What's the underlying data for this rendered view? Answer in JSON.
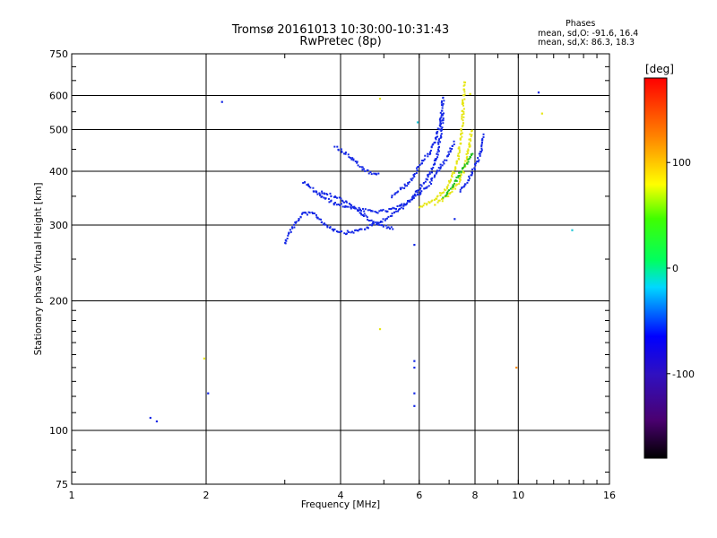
{
  "header": {
    "title_line1": "Tromsø 20161013 10:30:00-10:31:43",
    "title_line2": "RwPretec (8p)"
  },
  "phase_stats": {
    "label": "Phases",
    "line_o": "mean, sd,O: -91.6, 16.4",
    "line_x": "mean, sd,X:  86.3, 18.3"
  },
  "colorbar": {
    "title": "[deg]",
    "ticks": [
      "100",
      "0",
      "-100"
    ],
    "tick_values": [
      100,
      0,
      -100
    ],
    "range": [
      -180,
      180
    ]
  },
  "chart_data": {
    "type": "scatter",
    "xlabel": "Frequency [MHz]",
    "ylabel": "Stationary phase Virtual Height [km]",
    "x_scale": "log",
    "y_scale": "log",
    "xlim": [
      1,
      16
    ],
    "ylim": [
      75,
      750
    ],
    "x_ticks": [
      1,
      2,
      4,
      6,
      8,
      10,
      16
    ],
    "y_ticks": [
      75,
      100,
      200,
      300,
      400,
      500,
      600,
      750
    ],
    "grid": true,
    "color_encoding": "phase [deg]",
    "traces": [
      {
        "color": "blue",
        "points": [
          [
            3.0,
            272
          ],
          [
            3.05,
            285
          ],
          [
            3.15,
            300
          ],
          [
            3.3,
            320
          ],
          [
            3.5,
            318
          ],
          [
            3.7,
            300
          ],
          [
            3.9,
            292
          ],
          [
            4.1,
            288
          ],
          [
            4.3,
            290
          ],
          [
            4.6,
            296
          ],
          [
            4.9,
            305
          ],
          [
            5.2,
            316
          ],
          [
            5.5,
            330
          ],
          [
            5.8,
            350
          ],
          [
            6.1,
            372
          ],
          [
            6.4,
            400
          ],
          [
            6.6,
            440
          ],
          [
            6.7,
            490
          ],
          [
            6.8,
            550
          ]
        ]
      },
      {
        "color": "blue",
        "points": [
          [
            3.3,
            378
          ],
          [
            3.5,
            360
          ],
          [
            3.7,
            345
          ],
          [
            3.9,
            336
          ],
          [
            4.2,
            330
          ],
          [
            4.5,
            325
          ],
          [
            4.8,
            322
          ],
          [
            5.1,
            324
          ],
          [
            5.4,
            330
          ],
          [
            5.7,
            340
          ],
          [
            6.0,
            355
          ],
          [
            6.3,
            372
          ],
          [
            6.6,
            400
          ],
          [
            6.9,
            430
          ],
          [
            7.2,
            470
          ]
        ]
      },
      {
        "color": "blue",
        "points": [
          [
            3.5,
            360
          ],
          [
            3.8,
            352
          ],
          [
            4.1,
            340
          ],
          [
            4.4,
            322
          ],
          [
            4.7,
            306
          ],
          [
            5.0,
            298
          ],
          [
            5.3,
            295
          ]
        ]
      },
      {
        "color": "blue",
        "points": [
          [
            3.9,
            455
          ],
          [
            4.1,
            440
          ],
          [
            4.3,
            422
          ],
          [
            4.5,
            405
          ],
          [
            4.7,
            395
          ],
          [
            4.9,
            392
          ]
        ]
      },
      {
        "color": "blue",
        "points": [
          [
            5.2,
            350
          ],
          [
            5.5,
            365
          ],
          [
            5.8,
            385
          ],
          [
            6.0,
            410
          ],
          [
            6.3,
            440
          ],
          [
            6.5,
            470
          ],
          [
            6.7,
            520
          ],
          [
            6.8,
            600
          ]
        ]
      },
      {
        "color": "yellow",
        "points": [
          [
            6.0,
            330
          ],
          [
            6.3,
            338
          ],
          [
            6.6,
            348
          ],
          [
            6.9,
            365
          ],
          [
            7.1,
            385
          ],
          [
            7.3,
            420
          ],
          [
            7.4,
            460
          ],
          [
            7.5,
            520
          ],
          [
            7.55,
            600
          ],
          [
            7.6,
            650
          ]
        ]
      },
      {
        "color": "yellow",
        "points": [
          [
            6.5,
            335
          ],
          [
            6.8,
            345
          ],
          [
            7.1,
            360
          ],
          [
            7.4,
            380
          ],
          [
            7.6,
            410
          ],
          [
            7.75,
            450
          ],
          [
            7.85,
            500
          ]
        ]
      },
      {
        "color": "green",
        "points": [
          [
            6.8,
            350
          ],
          [
            7.1,
            365
          ],
          [
            7.3,
            385
          ],
          [
            7.5,
            405
          ],
          [
            7.7,
            420
          ],
          [
            7.9,
            445
          ]
        ]
      },
      {
        "color": "blue",
        "points": [
          [
            7.4,
            360
          ],
          [
            7.7,
            380
          ],
          [
            7.9,
            400
          ],
          [
            8.1,
            420
          ],
          [
            8.25,
            450
          ],
          [
            8.35,
            490
          ]
        ]
      }
    ],
    "scattered_points": [
      {
        "x": 1.5,
        "y": 107,
        "color": "blue"
      },
      {
        "x": 1.55,
        "y": 105,
        "color": "blue"
      },
      {
        "x": 2.02,
        "y": 122,
        "color": "blue"
      },
      {
        "x": 1.98,
        "y": 147,
        "color": "yellow"
      },
      {
        "x": 2.17,
        "y": 580,
        "color": "blue"
      },
      {
        "x": 4.9,
        "y": 172,
        "color": "yellow"
      },
      {
        "x": 4.9,
        "y": 590,
        "color": "yellow"
      },
      {
        "x": 5.85,
        "y": 145,
        "color": "blue"
      },
      {
        "x": 5.85,
        "y": 140,
        "color": "blue"
      },
      {
        "x": 5.85,
        "y": 122,
        "color": "blue"
      },
      {
        "x": 5.85,
        "y": 114,
        "color": "blue"
      },
      {
        "x": 5.85,
        "y": 270,
        "color": "blue"
      },
      {
        "x": 5.95,
        "y": 520,
        "color": "cyan"
      },
      {
        "x": 7.2,
        "y": 310,
        "color": "blue"
      },
      {
        "x": 7.8,
        "y": 605,
        "color": "yellow"
      },
      {
        "x": 9.9,
        "y": 140,
        "color": "orange"
      },
      {
        "x": 11.1,
        "y": 610,
        "color": "blue"
      },
      {
        "x": 11.3,
        "y": 545,
        "color": "yellow"
      },
      {
        "x": 13.2,
        "y": 292,
        "color": "cyan"
      }
    ]
  }
}
